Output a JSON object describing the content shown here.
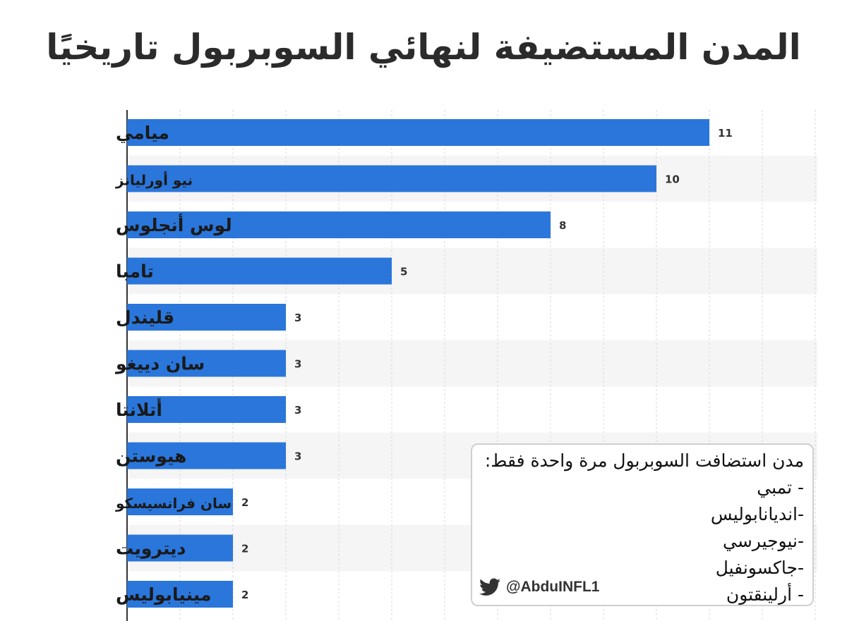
{
  "title": "المدن المستضيفة لنهائي السوبربول تاريخيًا",
  "chart_data": {
    "type": "bar",
    "orientation": "horizontal",
    "categories": [
      "ميامي",
      "نيو أورليانز",
      "لوس أنجلوس",
      "تامبا",
      "قليندل",
      "سان دييغو",
      "أتلانتا",
      "هيوستن",
      "سان فرانسيسكو",
      "ديترويت",
      "مينيابوليس"
    ],
    "values": [
      11,
      10,
      8,
      5,
      3,
      3,
      3,
      3,
      2,
      2,
      2
    ],
    "xlim": [
      0,
      13
    ],
    "grid": true,
    "bar_color": "#2a76db",
    "stripe_color": "#f5f5f5"
  },
  "note": {
    "heading": "مدن استضافت السوبربول مرة واحدة فقط:",
    "items": [
      "- تمبي",
      "-انديانابوليس",
      "-نيوجيرسي",
      "-جاكسونفيل",
      "- أرلينقتون"
    ]
  },
  "credit": {
    "icon": "twitter-bird-icon",
    "handle": "@AbduINFL1",
    "color": "#333333"
  }
}
